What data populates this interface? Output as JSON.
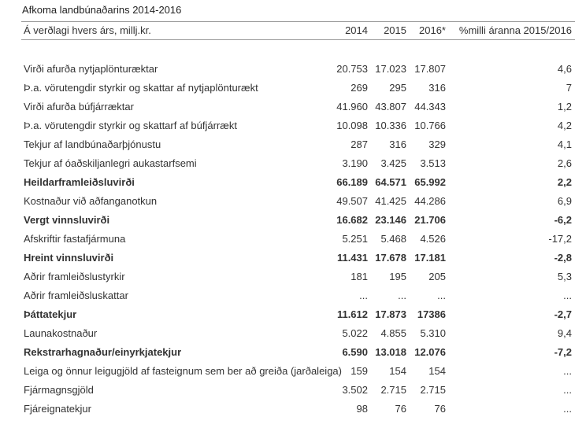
{
  "title": "Afkoma landbúnaðarins 2014-2016",
  "table": {
    "header": [
      "Á verðlagi hvers árs, millj.kr.",
      "2014",
      "2015",
      "2016*",
      "%milli áranna 2015/2016"
    ],
    "rows": [
      {
        "cells": [
          "Virði afurða nytjaplönturæktar",
          "20.753",
          "17.023",
          "17.807",
          "4,6"
        ],
        "bold": false
      },
      {
        "cells": [
          "Þ.a. vörutengdir styrkir og skattar af nytjaplönturækt",
          "269",
          "295",
          "316",
          "7"
        ],
        "bold": false
      },
      {
        "cells": [
          "Virði afurða búfjárræktar",
          "41.960",
          "43.807",
          "44.343",
          "1,2"
        ],
        "bold": false
      },
      {
        "cells": [
          "Þ.a. vörutengdir styrkir og skattarf af búfjárrækt",
          "10.098",
          "10.336",
          "10.766",
          "4,2"
        ],
        "bold": false
      },
      {
        "cells": [
          "Tekjur af landbúnaðarþjónustu",
          "287",
          "316",
          "329",
          "4,1"
        ],
        "bold": false
      },
      {
        "cells": [
          "Tekjur af óaðskiljanlegri aukastarfsemi",
          "3.190",
          "3.425",
          "3.513",
          "2,6"
        ],
        "bold": false
      },
      {
        "cells": [
          "Heildarframleiðsluvirði",
          "66.189",
          "64.571",
          "65.992",
          "2,2"
        ],
        "bold": true
      },
      {
        "cells": [
          "Kostnaður við aðfanganotkun",
          "49.507",
          "41.425",
          "44.286",
          "6,9"
        ],
        "bold": false
      },
      {
        "cells": [
          "Vergt vinnsluvirði",
          "16.682",
          "23.146",
          "21.706",
          "-6,2"
        ],
        "bold": true
      },
      {
        "cells": [
          "Afskriftir fastafjármuna",
          "5.251",
          "5.468",
          "4.526",
          "-17,2"
        ],
        "bold": false
      },
      {
        "cells": [
          "Hreint vinnsluvirði",
          "11.431",
          "17.678",
          "17.181",
          "-2,8"
        ],
        "bold": true
      },
      {
        "cells": [
          "Aðrir framleiðslustyrkir",
          "181",
          "195",
          "205",
          "5,3"
        ],
        "bold": false
      },
      {
        "cells": [
          "Aðrir framleiðsluskattar",
          "...",
          "...",
          "...",
          "..."
        ],
        "bold": false
      },
      {
        "cells": [
          "Þáttatekjur",
          "11.612",
          "17.873",
          "17386",
          "-2,7"
        ],
        "bold": true
      },
      {
        "cells": [
          "Launakostnaður",
          "5.022",
          "4.855",
          "5.310",
          "9,4"
        ],
        "bold": false
      },
      {
        "cells": [
          "Rekstrarhagnaður/einyrkjatekjur",
          "6.590",
          "13.018",
          "12.076",
          "-7,2"
        ],
        "bold": true
      },
      {
        "cells": [
          "Leiga og önnur leigugjöld af fasteignum sem ber að greiða (jarðaleiga)",
          "159",
          "154",
          "154",
          "..."
        ],
        "bold": false
      },
      {
        "cells": [
          "Fjármagnsgjöld",
          "3.502",
          "2.715",
          "2.715",
          "..."
        ],
        "bold": false
      },
      {
        "cells": [
          "Fjáreignatekjur",
          "98",
          "76",
          "76",
          "..."
        ],
        "bold": false
      }
    ]
  }
}
